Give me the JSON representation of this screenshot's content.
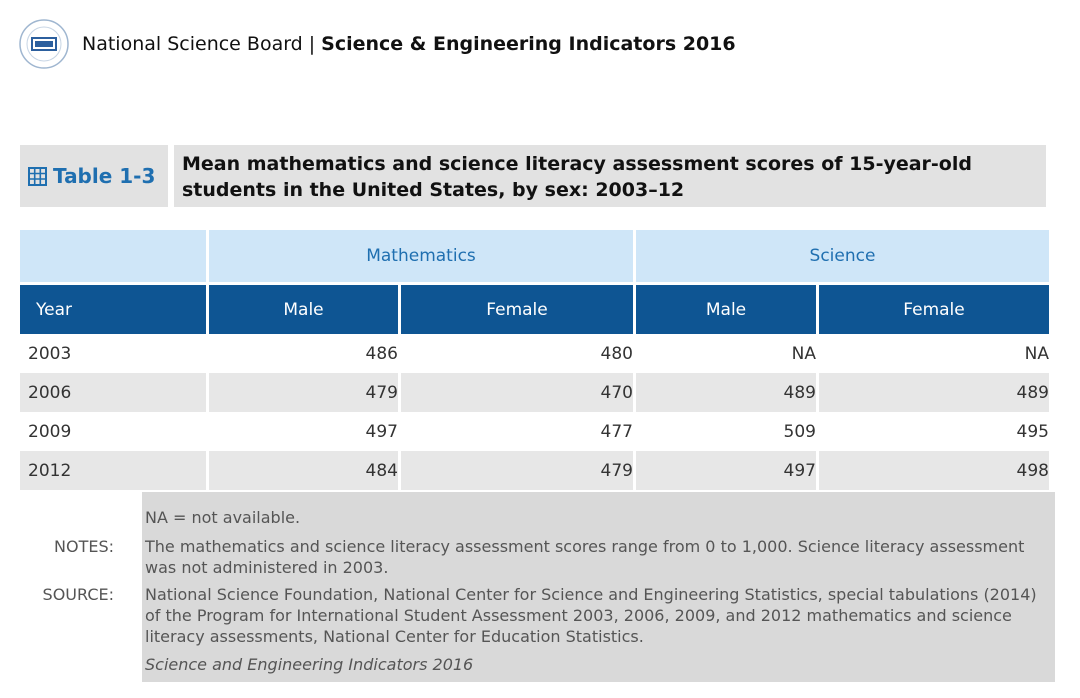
{
  "header": {
    "org": "National Science Board",
    "separator": "|",
    "publication": "Science & Engineering Indicators 2016"
  },
  "title_block": {
    "table_label": "Table 1-3",
    "title": "Mean mathematics and science literacy assessment scores of 15-year-old students in the United States, by sex: 2003–12"
  },
  "table": {
    "groups": [
      "Mathematics",
      "Science"
    ],
    "columns": [
      "Year",
      "Male",
      "Female",
      "Male",
      "Female"
    ],
    "rows": [
      [
        "2003",
        "486",
        "480",
        "NA",
        "NA"
      ],
      [
        "2006",
        "479",
        "470",
        "489",
        "489"
      ],
      [
        "2009",
        "497",
        "477",
        "509",
        "495"
      ],
      [
        "2012",
        "484",
        "479",
        "497",
        "498"
      ]
    ]
  },
  "notes": {
    "na_def": "NA = not available.",
    "notes_label": "NOTES:",
    "notes_text": "The mathematics and science literacy assessment scores range from 0 to 1,000. Science literacy assessment was not administered in 2003.",
    "source_label": "SOURCE:",
    "source_text": "National Science Foundation, National Center for Science and Engineering Statistics, special tabulations (2014) of the Program for International Student Assessment 2003, 2006, 2009, and 2012 mathematics and science literacy assessments, National Center for Education Statistics.",
    "citation": "Science and Engineering Indicators 2016"
  }
}
